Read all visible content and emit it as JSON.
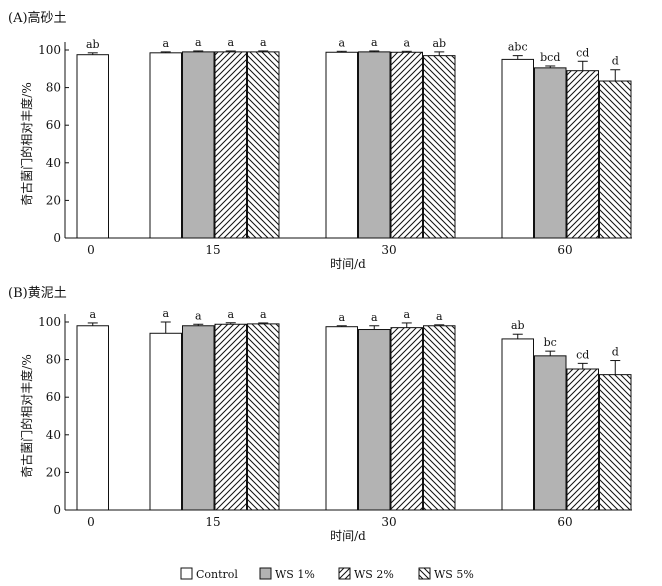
{
  "chart_data": [
    {
      "type": "bar",
      "title": "(A)高砂土",
      "xlabel": "时间/d",
      "ylabel": "奇古菌门的相对丰度/%",
      "ylim": [
        0,
        100
      ],
      "yticks": [
        0,
        20,
        40,
        60,
        80,
        100
      ],
      "categories": [
        "0",
        "15",
        "30",
        "60"
      ],
      "series": [
        {
          "name": "Control",
          "values": [
            97.5,
            98.5,
            98.8,
            95
          ],
          "errors": [
            1.0,
            0.5,
            0.5,
            2
          ],
          "labels": [
            "ab",
            "a",
            "a",
            "abc"
          ]
        },
        {
          "name": "WS 1%",
          "values": [
            null,
            99,
            99,
            90.5
          ],
          "errors": [
            null,
            0.5,
            0.5,
            1
          ],
          "labels": [
            null,
            "a",
            "a",
            "bcd"
          ]
        },
        {
          "name": "WS 2%",
          "values": [
            null,
            99,
            98.8,
            89
          ],
          "errors": [
            null,
            0.5,
            0.5,
            5
          ],
          "labels": [
            null,
            "a",
            "a",
            "cd"
          ]
        },
        {
          "name": "WS 5%",
          "values": [
            null,
            99,
            97,
            83.5
          ],
          "errors": [
            null,
            0.5,
            2,
            6
          ],
          "labels": [
            null,
            "a",
            "ab",
            "d"
          ]
        }
      ]
    },
    {
      "type": "bar",
      "title": "(B)黄泥土",
      "xlabel": "时间/d",
      "ylabel": "奇古菌门的相对丰度/%",
      "ylim": [
        0,
        100
      ],
      "yticks": [
        0,
        20,
        40,
        60,
        80,
        100
      ],
      "categories": [
        "0",
        "15",
        "30",
        "60"
      ],
      "series": [
        {
          "name": "Control",
          "values": [
            98,
            94,
            97.5,
            91
          ],
          "errors": [
            1.5,
            6,
            0.5,
            2.5
          ],
          "labels": [
            "a",
            "a",
            "a",
            "ab"
          ]
        },
        {
          "name": "WS 1%",
          "values": [
            null,
            98,
            96,
            82
          ],
          "errors": [
            null,
            0.8,
            2,
            2.5
          ],
          "labels": [
            null,
            "a",
            "a",
            "bc"
          ]
        },
        {
          "name": "WS 2%",
          "values": [
            null,
            98.8,
            97,
            75
          ],
          "errors": [
            null,
            0.8,
            2.5,
            3
          ],
          "labels": [
            null,
            "a",
            "a",
            "cd"
          ]
        },
        {
          "name": "WS 5%",
          "values": [
            null,
            99,
            98,
            72
          ],
          "errors": [
            null,
            0.5,
            0.5,
            7.5
          ],
          "labels": [
            null,
            "a",
            "a",
            "d"
          ]
        }
      ]
    }
  ],
  "legend": [
    {
      "name": "Control",
      "pattern": "white"
    },
    {
      "name": "WS 1%",
      "pattern": "gray"
    },
    {
      "name": "WS 2%",
      "pattern": "hatch-forward"
    },
    {
      "name": "WS 5%",
      "pattern": "hatch-back"
    }
  ],
  "colors": {
    "gray_fill": "#b3b3b3",
    "stroke": "#111111"
  }
}
